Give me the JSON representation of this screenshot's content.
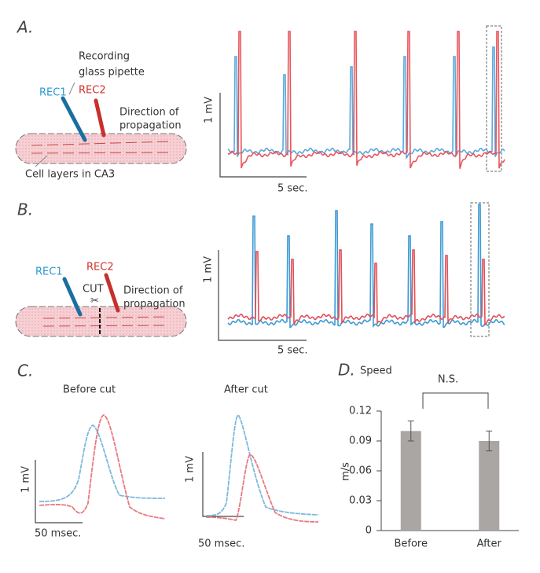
{
  "panels": {
    "a": {
      "letter": "A.",
      "recording": "Recording",
      "pipette": "glass pipette",
      "rec1": "REC1",
      "rec2": "REC2",
      "direction": "Direction of",
      "propagation": "propagation",
      "layers": "Cell layers in CA3",
      "scale_y": "1 mV",
      "scale_x": "5 sec."
    },
    "b": {
      "letter": "B.",
      "rec1": "REC1",
      "rec2": "REC2",
      "cut": "CUT",
      "direction": "Direction of",
      "propagation": "propagation",
      "scale_y": "1 mV",
      "scale_x": "5 sec."
    },
    "c": {
      "letter": "C.",
      "before": {
        "title": "Before cut",
        "scale_y": "1 mV",
        "scale_x": "50 msec."
      },
      "after": {
        "title": "After cut",
        "scale_y": "1 mV",
        "scale_x": "50 msec."
      }
    }
  },
  "chart_data": {
    "type": "bar",
    "panel_letter": "D.",
    "title": "Speed",
    "annotation": "N.S.",
    "ylabel": "m/s",
    "categories": [
      "Before",
      "After"
    ],
    "values": [
      0.1,
      0.09
    ],
    "errors": [
      0.01,
      0.01
    ],
    "color": "#aaa6a3",
    "ylim": [
      0,
      0.12
    ],
    "yticks": [
      0,
      0.03,
      0.06,
      0.09,
      0.12
    ]
  }
}
